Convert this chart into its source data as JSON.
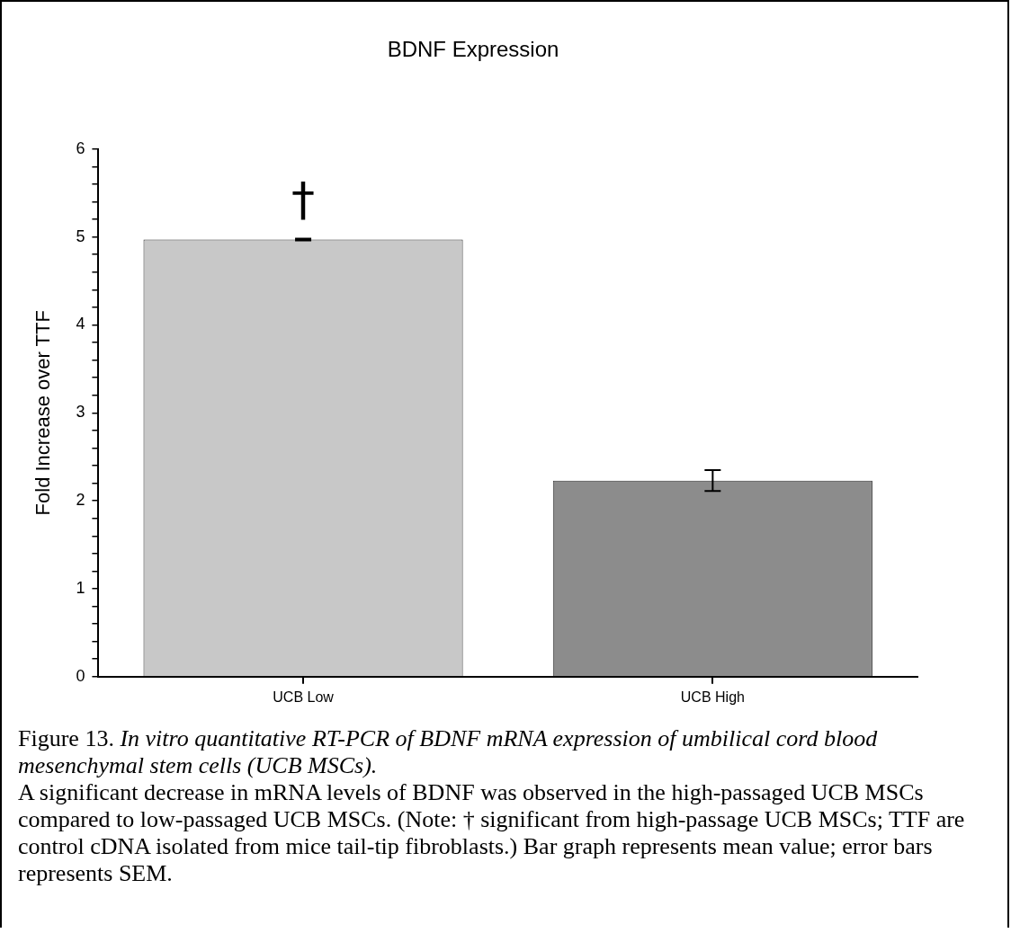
{
  "chart_data": {
    "type": "bar",
    "title": "BDNF Expression",
    "ylabel": "Fold Increase over TTF",
    "categories": [
      "UCB Low",
      "UCB High"
    ],
    "series": [
      {
        "colors": [
          "#c8c8c8",
          "#8c8c8c"
        ],
        "values": [
          4.97,
          2.23
        ],
        "errors": [
          0.01,
          0.12
        ]
      }
    ],
    "ylim": [
      0,
      6
    ],
    "yticks": [
      0,
      {
        "value": 0.2,
        "label": null
      },
      {
        "value": 0.4,
        "label": null
      },
      {
        "value": 0.6,
        "label": null
      },
      {
        "value": 0.8,
        "label": null
      },
      1,
      {
        "value": 1.2,
        "label": null
      },
      {
        "value": 1.4,
        "label": null
      },
      {
        "value": 1.6,
        "label": null
      },
      {
        "value": 1.8,
        "label": null
      },
      2,
      {
        "value": 2.2,
        "label": null
      },
      {
        "value": 2.4,
        "label": null
      },
      {
        "value": 2.6,
        "label": null
      },
      {
        "value": 2.8,
        "label": null
      },
      3,
      {
        "value": 3.2,
        "label": null
      },
      {
        "value": 3.4,
        "label": null
      },
      {
        "value": 3.6,
        "label": null
      },
      {
        "value": 3.8,
        "label": null
      },
      4,
      {
        "value": 4.2,
        "label": null
      },
      {
        "value": 4.4,
        "label": null
      },
      {
        "value": 4.6,
        "label": null
      },
      {
        "value": 4.8,
        "label": null
      },
      5,
      {
        "value": 5.2,
        "label": null
      },
      {
        "value": 5.4,
        "label": null
      },
      {
        "value": 5.6,
        "label": null
      },
      {
        "value": 5.8,
        "label": null
      },
      6
    ],
    "grid": false,
    "legend": false,
    "annotations": [
      "†",
      "Figure 13.",
      "In vitro quantitative RT-PCR of BDNF mRNA expression of umbilical cord blood mesenchymal stem cells (UCB MSCs).",
      "A significant decrease in mRNA levels of BDNF was observed in the high-passaged UCB MSCs compared to low-passaged UCB MSCs. (Note: † significant from high-passage UCB MSCs; TTF are control cDNA isolated from mice tail-tip fibroblasts.) Bar graph represents mean value; error bars represents SEM."
    ]
  }
}
